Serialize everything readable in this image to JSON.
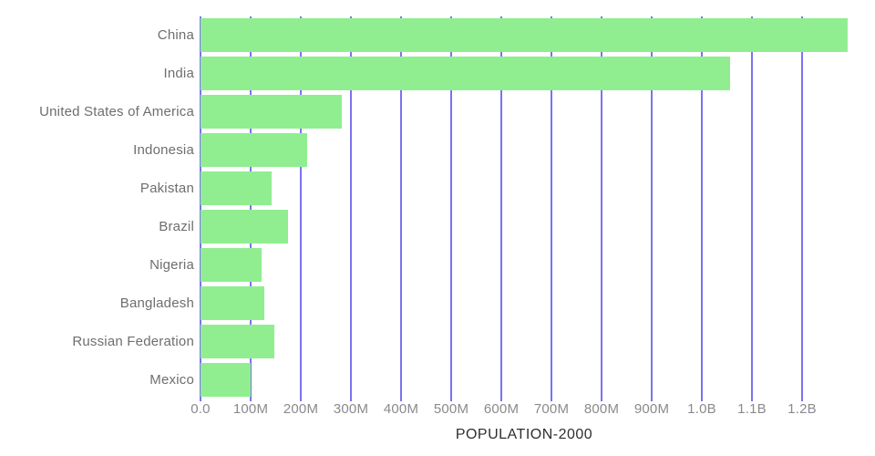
{
  "chart_data": {
    "type": "bar",
    "orientation": "horizontal",
    "title": "POPULATION-2000",
    "categories": [
      "China",
      "India",
      "United States of America",
      "Indonesia",
      "Pakistan",
      "Brazil",
      "Nigeria",
      "Bangladesh",
      "Russian Federation",
      "Mexico"
    ],
    "values_millions": [
      1291,
      1057,
      282,
      212,
      142,
      175,
      122,
      128,
      147,
      99
    ],
    "x_ticks": [
      "0.0",
      "100M",
      "200M",
      "300M",
      "400M",
      "500M",
      "600M",
      "700M",
      "800M",
      "900M",
      "1.0B",
      "1.1B",
      "1.2B"
    ],
    "x_tick_values_millions": [
      0,
      100,
      200,
      300,
      400,
      500,
      600,
      700,
      800,
      900,
      1000,
      1100,
      1200
    ],
    "xlim_millions": [
      0,
      1292
    ],
    "grid": "vertical-gridlines-behind-bars",
    "legend": "none",
    "colors": {
      "bar": "#90ee90",
      "gridline": "#7b72f2",
      "category_label": "#6e6e72",
      "tick_label": "#8a8a8e",
      "title": "#2e2e2e",
      "background": "#ffffff"
    }
  }
}
